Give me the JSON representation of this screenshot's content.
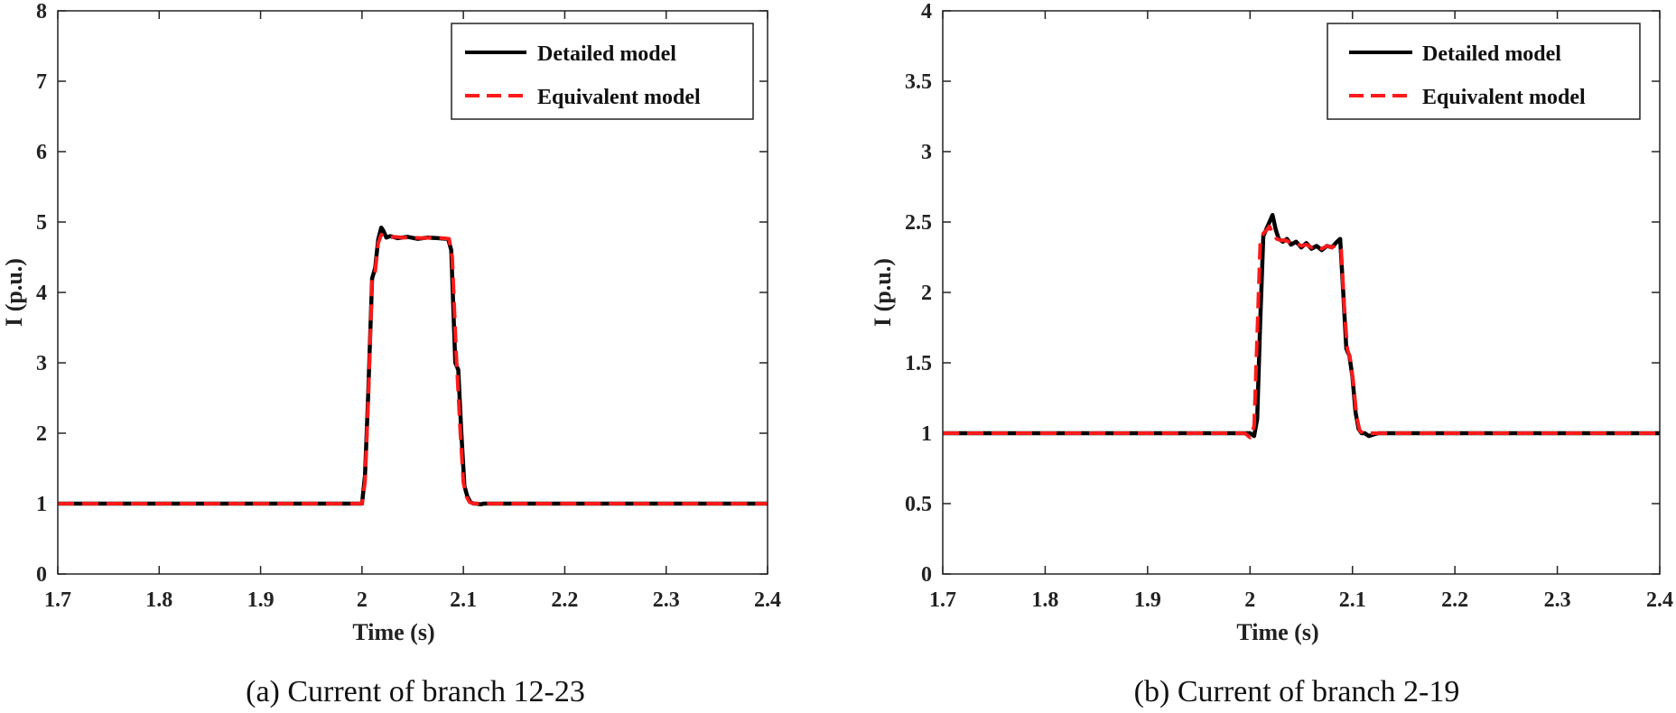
{
  "chart_data": [
    {
      "type": "line",
      "caption": "(a) Current of branch 12-23",
      "xlabel": "Time (s)",
      "ylabel": "I (p.u.)",
      "xlim": [
        1.7,
        2.4
      ],
      "ylim": [
        0,
        8
      ],
      "xticks": [
        "1.7",
        "1.8",
        "1.9",
        "2",
        "2.1",
        "2.2",
        "2.3",
        "2.4"
      ],
      "yticks": [
        "0",
        "1",
        "2",
        "3",
        "4",
        "5",
        "6",
        "7",
        "8"
      ],
      "grid": false,
      "legend_position": "top-right",
      "series": [
        {
          "name": "Detailed model",
          "color": "#000000",
          "style": "solid",
          "x": [
            1.7,
            2.0,
            2.003,
            2.006,
            2.01,
            2.013,
            2.016,
            2.019,
            2.021,
            2.024,
            2.028,
            2.035,
            2.045,
            2.055,
            2.065,
            2.075,
            2.085,
            2.088,
            2.092,
            2.095,
            2.098,
            2.101,
            2.104,
            2.107,
            2.11,
            2.113,
            2.117,
            2.12,
            2.4
          ],
          "y": [
            1.0,
            1.0,
            1.4,
            2.5,
            4.2,
            4.35,
            4.75,
            4.92,
            4.88,
            4.78,
            4.8,
            4.77,
            4.79,
            4.76,
            4.78,
            4.77,
            4.76,
            4.6,
            3.0,
            2.9,
            2.0,
            1.25,
            1.1,
            1.02,
            1.0,
            1.0,
            0.99,
            1.0,
            1.0
          ]
        },
        {
          "name": "Equivalent model",
          "color": "#ff1a1a",
          "style": "dashed",
          "x": [
            1.7,
            2.0,
            2.003,
            2.006,
            2.01,
            2.013,
            2.016,
            2.019,
            2.022,
            2.026,
            2.032,
            2.04,
            2.05,
            2.06,
            2.07,
            2.08,
            2.086,
            2.089,
            2.093,
            2.097,
            2.1,
            2.103,
            2.106,
            2.11,
            2.115,
            2.4
          ],
          "y": [
            1.0,
            1.0,
            1.3,
            2.4,
            4.2,
            4.3,
            4.7,
            4.82,
            4.8,
            4.78,
            4.79,
            4.78,
            4.78,
            4.77,
            4.78,
            4.77,
            4.76,
            4.5,
            3.1,
            2.0,
            1.3,
            1.1,
            1.02,
            1.0,
            1.0,
            1.0
          ]
        }
      ]
    },
    {
      "type": "line",
      "caption": "(b) Current of branch 2-19",
      "xlabel": "Time (s)",
      "ylabel": "I (p.u.)",
      "xlim": [
        1.7,
        2.4
      ],
      "ylim": [
        0,
        4
      ],
      "xticks": [
        "1.7",
        "1.8",
        "1.9",
        "2",
        "2.1",
        "2.2",
        "2.3",
        "2.4"
      ],
      "yticks": [
        "0",
        "0.5",
        "1",
        "1.5",
        "2",
        "2.5",
        "3",
        "3.5",
        "4"
      ],
      "grid": false,
      "legend_position": "top-right",
      "series": [
        {
          "name": "Detailed model",
          "color": "#000000",
          "style": "solid",
          "x": [
            1.7,
            2.0,
            2.004,
            2.007,
            2.01,
            2.013,
            2.016,
            2.019,
            2.022,
            2.025,
            2.028,
            2.032,
            2.036,
            2.04,
            2.045,
            2.05,
            2.055,
            2.06,
            2.065,
            2.07,
            2.075,
            2.08,
            2.085,
            2.088,
            2.091,
            2.094,
            2.097,
            2.1,
            2.103,
            2.106,
            2.109,
            2.112,
            2.116,
            2.12,
            2.125,
            2.13,
            2.4
          ],
          "y": [
            1.0,
            1.0,
            0.98,
            1.1,
            1.8,
            2.4,
            2.45,
            2.5,
            2.55,
            2.45,
            2.38,
            2.36,
            2.38,
            2.34,
            2.36,
            2.32,
            2.35,
            2.31,
            2.33,
            2.3,
            2.33,
            2.32,
            2.36,
            2.38,
            2.0,
            1.6,
            1.55,
            1.4,
            1.15,
            1.03,
            1.0,
            1.0,
            0.98,
            0.99,
            1.0,
            1.0,
            1.0
          ]
        },
        {
          "name": "Equivalent model",
          "color": "#ff1a1a",
          "style": "dashed",
          "x": [
            1.7,
            1.995,
            2.0,
            2.004,
            2.007,
            2.01,
            2.013,
            2.016,
            2.019,
            2.022,
            2.026,
            2.03,
            2.035,
            2.04,
            2.045,
            2.05,
            2.055,
            2.06,
            2.065,
            2.07,
            2.075,
            2.08,
            2.085,
            2.089,
            2.092,
            2.095,
            2.098,
            2.101,
            2.104,
            2.107,
            2.11,
            2.115,
            2.12,
            2.13,
            2.4
          ],
          "y": [
            1.0,
            1.0,
            0.97,
            1.05,
            1.7,
            2.35,
            2.42,
            2.44,
            2.47,
            2.42,
            2.38,
            2.37,
            2.37,
            2.35,
            2.35,
            2.33,
            2.34,
            2.32,
            2.33,
            2.31,
            2.33,
            2.32,
            2.34,
            2.3,
            1.9,
            1.6,
            1.52,
            1.35,
            1.12,
            1.02,
            1.0,
            1.0,
            1.0,
            1.0,
            1.0
          ]
        }
      ]
    }
  ]
}
